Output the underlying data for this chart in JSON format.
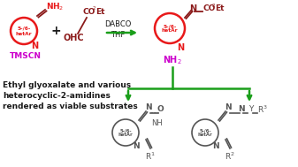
{
  "bg_color": "#ffffff",
  "arrow_color": "#1a9e1a",
  "red_color": "#e8191a",
  "magenta_color": "#cc00cc",
  "dark_color": "#1a1a1a",
  "dark_red": "#8b1a1a",
  "gray_color": "#555555",
  "figsize": [
    3.37,
    1.89
  ],
  "dpi": 100,
  "tmscn_label": "TMSCN",
  "text_line1": "Ethyl glyoxalate and various",
  "text_line2": "heterocyclic-2-amidines",
  "text_line3": "rendered as viable substrates"
}
